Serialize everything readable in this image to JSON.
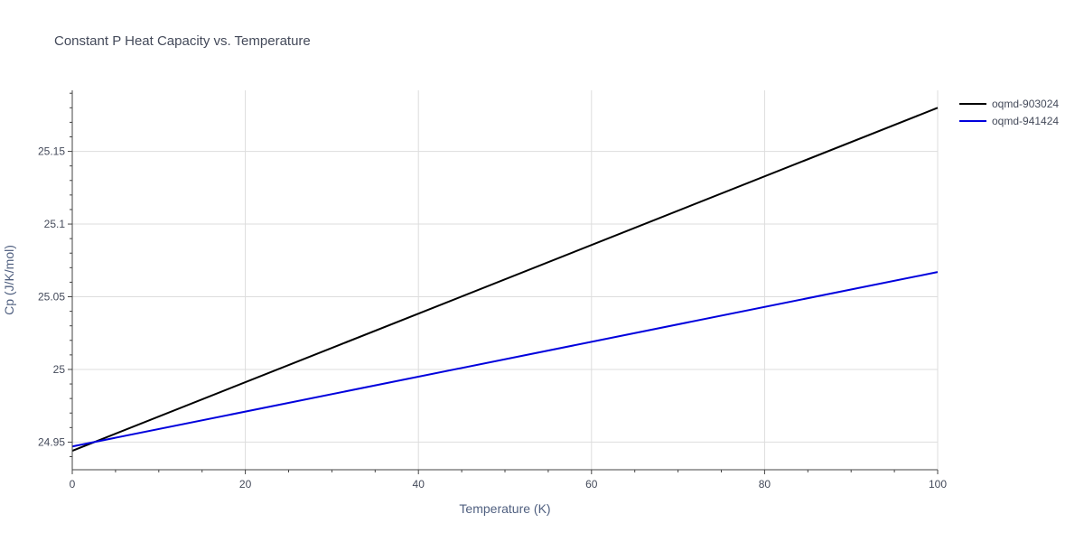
{
  "chart_data": {
    "type": "line",
    "title": "Constant P Heat Capacity vs. Temperature",
    "xlabel": "Temperature (K)",
    "ylabel": "Cp (J/K/mol)",
    "xlim": [
      0,
      100
    ],
    "ylim": [
      24.931,
      25.192
    ],
    "xticks": [
      0,
      20,
      40,
      60,
      80,
      100
    ],
    "xtick_labels": [
      "0",
      "20",
      "40",
      "60",
      "80",
      "100"
    ],
    "yticks": [
      24.95,
      25.0,
      25.05,
      25.1,
      25.15
    ],
    "ytick_labels": [
      "24.95",
      "25",
      "25.05",
      "25.1",
      "25.15"
    ],
    "grid": true,
    "legend_position": "top-right",
    "series": [
      {
        "name": "oqmd-903024",
        "color": "#000000",
        "x": [
          0,
          100
        ],
        "y": [
          24.944,
          25.18
        ]
      },
      {
        "name": "oqmd-941424",
        "color": "#0000dd",
        "x": [
          0,
          100
        ],
        "y": [
          24.947,
          25.067
        ]
      }
    ]
  }
}
